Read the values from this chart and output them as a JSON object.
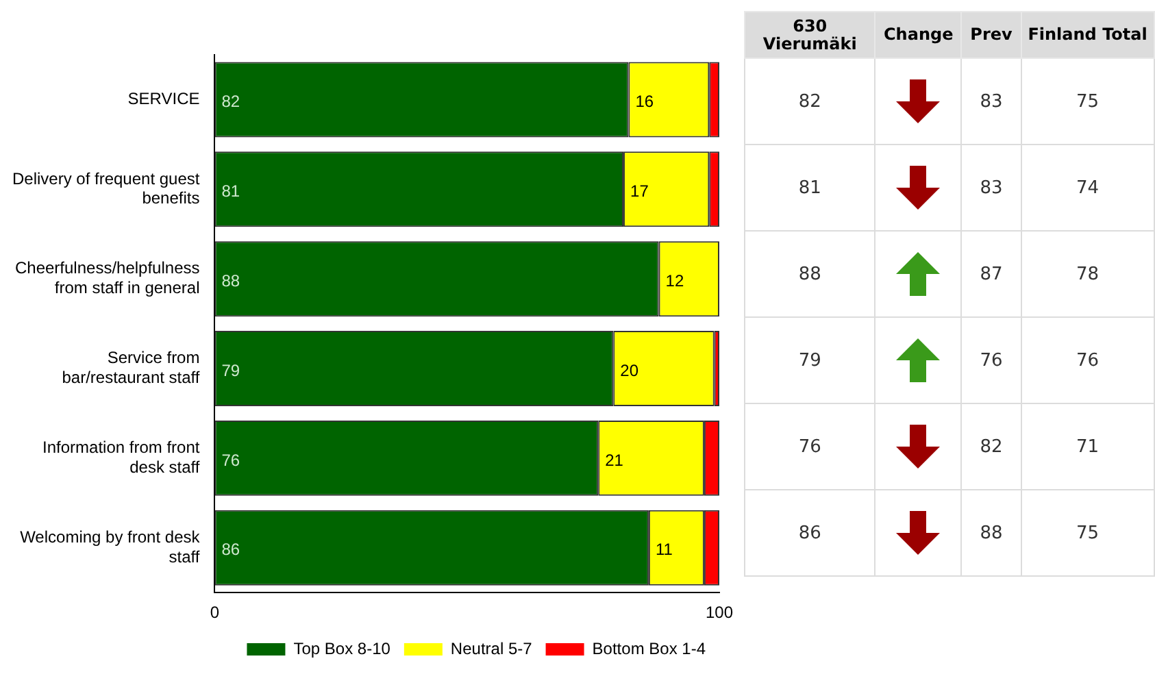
{
  "chart_data": [
    {
      "type": "bar",
      "orientation": "horizontal",
      "stacked": true,
      "categories": [
        "SERVICE",
        "Delivery of frequent guest benefits",
        "Cheerfulness/helpfulness from staff in general",
        "Service from bar/restaurant staff",
        "Information from front desk staff",
        "Welcoming by front desk staff"
      ],
      "series": [
        {
          "name": "Top Box 8-10",
          "color": "#006400",
          "values": [
            82,
            81,
            88,
            79,
            76,
            86
          ],
          "value_labels": [
            "82",
            "81",
            "88",
            "79",
            "76",
            "86"
          ]
        },
        {
          "name": "Neutral 5-7",
          "color": "#ffff00",
          "values": [
            16,
            17,
            12,
            20,
            21,
            11
          ],
          "value_labels": [
            "16",
            "17",
            "12",
            "20",
            "21",
            "11"
          ]
        },
        {
          "name": "Bottom Box 1-4",
          "color": "#ff0000",
          "values": [
            2,
            2,
            0,
            1,
            3,
            3
          ]
        }
      ],
      "xlim": [
        0,
        100
      ],
      "xticks": [
        0,
        100
      ],
      "grid": false,
      "legend": "bottom"
    },
    {
      "type": "other",
      "categories": [
        "630 Vierumäki",
        "Change",
        "Prev",
        "Finland Total"
      ],
      "cell_labels": [
        [
          "82",
          null,
          "83",
          "75"
        ],
        [
          "81",
          null,
          "83",
          "74"
        ],
        [
          "88",
          null,
          "87",
          "78"
        ],
        [
          "79",
          null,
          "76",
          "76"
        ],
        [
          "76",
          null,
          "82",
          "71"
        ],
        [
          "86",
          null,
          "88",
          "75"
        ]
      ]
    }
  ]
}
